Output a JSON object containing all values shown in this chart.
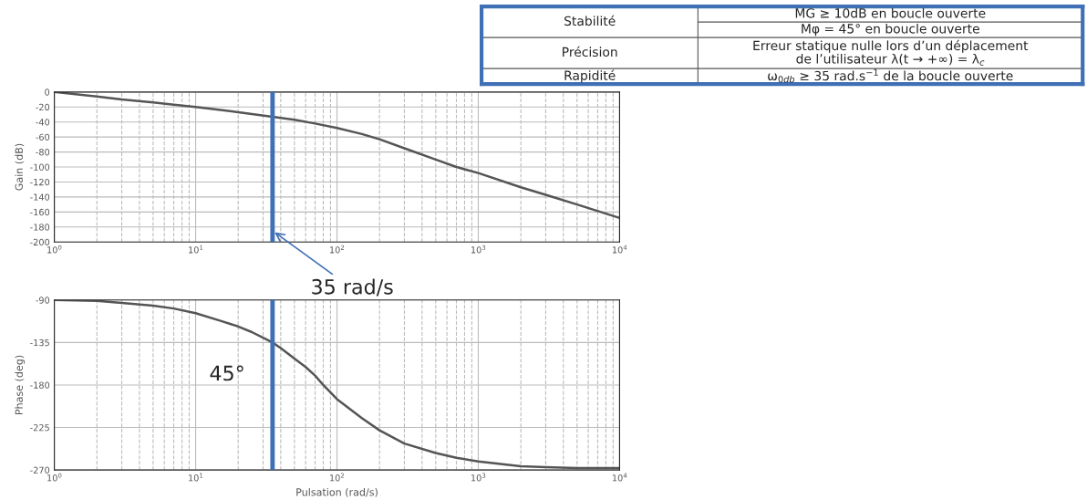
{
  "chart_data": [
    {
      "type": "line",
      "ylabel": "Gain (dB)",
      "log": "x",
      "grid": true,
      "marker": "none",
      "line_style": "solid",
      "x": [
        1,
        2,
        3,
        5,
        7,
        10,
        15,
        20,
        35,
        50,
        70,
        100,
        150,
        200,
        300,
        500,
        700,
        1000,
        2000,
        3000,
        5000,
        10000
      ],
      "series": [
        {
          "color": "#555555",
          "values": [
            0,
            -6,
            -10,
            -14,
            -17,
            -20,
            -24,
            -27,
            -33,
            -37,
            -42,
            -48,
            -56,
            -63,
            -75,
            -90,
            -100,
            -108,
            -127,
            -137,
            -150,
            -168
          ]
        }
      ],
      "xlim": [
        1,
        10000
      ],
      "xticks": [
        {
          "value": 1,
          "label": "10$^{0}$"
        },
        {
          "value": 10,
          "label": "10$^{1}$"
        },
        {
          "value": 100,
          "label": "10$^{2}$"
        },
        {
          "value": 1000,
          "label": "10$^{3}$"
        },
        {
          "value": 10000,
          "label": "10$^{4}$"
        }
      ],
      "ylim": [
        -200,
        0
      ],
      "yticks": [
        -200,
        -180,
        -160,
        -140,
        -120,
        -100,
        -80,
        -60,
        -40,
        -20,
        0
      ],
      "ref_lines": [
        {
          "axis": "x",
          "value": 35,
          "color": "#3f6fb5"
        }
      ],
      "annotations": [
        {
          "text": "35 rad/s",
          "x": 35,
          "y": -185
        }
      ]
    },
    {
      "type": "line",
      "xlabel": "Pulsation (rad/s)",
      "ylabel": "Phase (deg)",
      "log": "x",
      "grid": true,
      "marker": "none",
      "line_style": "solid",
      "x": [
        1,
        2,
        3,
        5,
        7,
        10,
        15,
        20,
        25,
        30,
        35,
        40,
        50,
        60,
        70,
        80,
        100,
        150,
        200,
        300,
        500,
        700,
        1000,
        2000,
        3000,
        5000,
        10000
      ],
      "series": [
        {
          "color": "#555555",
          "values": [
            -90,
            -91,
            -93,
            -96,
            -99,
            -104,
            -112,
            -118,
            -124,
            -130,
            -135,
            -141,
            -152,
            -161,
            -170,
            -180,
            -195,
            -215,
            -228,
            -242,
            -252,
            -257,
            -261,
            -266,
            -267,
            -268,
            -268
          ]
        }
      ],
      "xlim": [
        1,
        10000
      ],
      "xticks": [
        {
          "value": 1,
          "label": "10$^{0}$"
        },
        {
          "value": 10,
          "label": "10$^{1}$"
        },
        {
          "value": 100,
          "label": "10$^{2}$"
        },
        {
          "value": 1000,
          "label": "10$^{3}$"
        },
        {
          "value": 10000,
          "label": "10$^{4}$"
        }
      ],
      "ylim": [
        -270,
        -90
      ],
      "yticks": [
        -270,
        -225,
        -180,
        -135,
        -90
      ],
      "ref_lines": [
        {
          "axis": "x",
          "value": 35,
          "color": "#3f6fb5"
        }
      ],
      "annotations": [
        {
          "text": "45°",
          "x": 35,
          "y": -135
        }
      ]
    },
    {
      "type": "other",
      "annotations": [
        "Stabilité",
        "MG ≥ 10dB en boucle ouverte",
        "Mφ = 45° en boucle ouverte",
        "Précision",
        "Erreur statique nulle lors d’un déplacement\nde l’utilisateur λ(t → +∞) = λ$_{c}$",
        "Rapidité",
        "ω$_{0db}$ ≥ 35 rad.s$^{−1}$ de la boucle ouverte"
      ]
    }
  ]
}
